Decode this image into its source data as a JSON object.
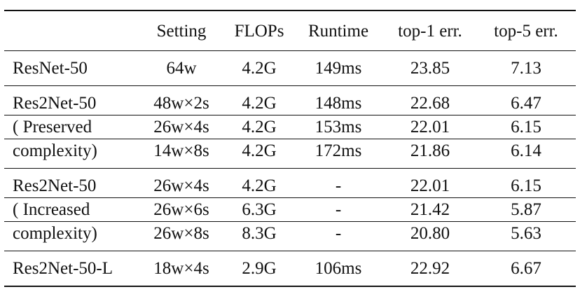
{
  "table": {
    "headers": [
      "",
      "Setting",
      "FLOPs",
      "Runtime",
      "top-1 err.",
      "top-5 err."
    ],
    "groups": [
      {
        "rows": [
          [
            "ResNet-50",
            "64w",
            "4.2G",
            "149ms",
            "23.85",
            "7.13"
          ]
        ]
      },
      {
        "rows": [
          [
            "Res2Net-50",
            "48w×2s",
            "4.2G",
            "148ms",
            "22.68",
            "6.47"
          ],
          [
            "( Preserved",
            "26w×4s",
            "4.2G",
            "153ms",
            "22.01",
            "6.15"
          ],
          [
            "complexity)",
            "14w×8s",
            "4.2G",
            "172ms",
            "21.86",
            "6.14"
          ]
        ]
      },
      {
        "rows": [
          [
            "Res2Net-50",
            "26w×4s",
            "4.2G",
            "-",
            "22.01",
            "6.15"
          ],
          [
            "( Increased",
            "26w×6s",
            "6.3G",
            "-",
            "21.42",
            "5.87"
          ],
          [
            "complexity)",
            "26w×8s",
            "8.3G",
            "-",
            "20.80",
            "5.63"
          ]
        ]
      },
      {
        "rows": [
          [
            "Res2Net-50-L",
            "18w×4s",
            "2.9G",
            "106ms",
            "22.92",
            "6.67"
          ]
        ]
      }
    ]
  }
}
